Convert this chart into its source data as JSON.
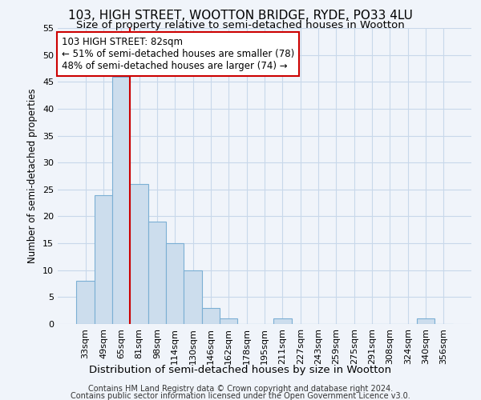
{
  "title": "103, HIGH STREET, WOOTTON BRIDGE, RYDE, PO33 4LU",
  "subtitle": "Size of property relative to semi-detached houses in Wootton",
  "xlabel": "Distribution of semi-detached houses by size in Wootton",
  "ylabel": "Number of semi-detached properties",
  "categories": [
    "33sqm",
    "49sqm",
    "65sqm",
    "81sqm",
    "98sqm",
    "114sqm",
    "130sqm",
    "146sqm",
    "162sqm",
    "178sqm",
    "195sqm",
    "211sqm",
    "227sqm",
    "243sqm",
    "259sqm",
    "275sqm",
    "291sqm",
    "308sqm",
    "324sqm",
    "340sqm",
    "356sqm"
  ],
  "values": [
    8,
    24,
    46,
    26,
    19,
    15,
    10,
    3,
    1,
    0,
    0,
    1,
    0,
    0,
    0,
    0,
    0,
    0,
    0,
    1,
    0
  ],
  "bar_color": "#ccdded",
  "bar_edge_color": "#7bafd4",
  "highlight_label": "103 HIGH STREET: 82sqm",
  "smaller_pct": "51% of semi-detached houses are smaller (78)",
  "larger_pct": "48% of semi-detached houses are larger (74)",
  "annotation_box_color": "#ffffff",
  "annotation_box_edge": "#cc0000",
  "vline_color": "#cc0000",
  "grid_color": "#c8d8ea",
  "background_color": "#f0f4fa",
  "footer_line1": "Contains HM Land Registry data © Crown copyright and database right 2024.",
  "footer_line2": "Contains public sector information licensed under the Open Government Licence v3.0.",
  "ylim": [
    0,
    55
  ],
  "title_fontsize": 11,
  "subtitle_fontsize": 9.5,
  "xlabel_fontsize": 9.5,
  "ylabel_fontsize": 8.5,
  "tick_fontsize": 8,
  "annotation_fontsize": 8.5,
  "footer_fontsize": 7
}
